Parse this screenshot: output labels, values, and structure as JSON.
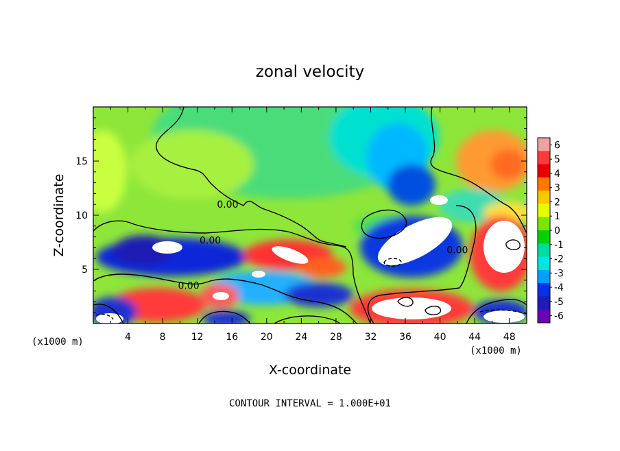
{
  "chart_data": {
    "type": "heatmap",
    "title": "zonal velocity",
    "xlabel": "X-coordinate",
    "ylabel": "Z-coordinate",
    "x_units_left": "(x1000 m)",
    "x_units_right": "(x1000 m)",
    "xlim": [
      0,
      50
    ],
    "ylim": [
      0,
      20
    ],
    "x_ticks": [
      4,
      8,
      12,
      16,
      20,
      24,
      28,
      32,
      36,
      40,
      44,
      48
    ],
    "y_ticks": [
      5,
      10,
      15
    ],
    "colorbar": {
      "ticks": [
        6,
        5,
        4,
        3,
        2,
        1,
        0,
        -1,
        -2,
        -3,
        -4,
        -5,
        -6
      ],
      "colors": [
        "#f2a0a0",
        "#ff3a3a",
        "#e60000",
        "#ff7a00",
        "#ffc800",
        "#e6ff00",
        "#78e600",
        "#00d200",
        "#00dca0",
        "#00e6e6",
        "#00a0ff",
        "#0032e6",
        "#1e1eb4",
        "#6e00b4"
      ]
    },
    "contour_labels": [
      {
        "text": "0.00",
        "x": 15.5,
        "z": 11.0
      },
      {
        "text": "0.00",
        "x": 13.5,
        "z": 7.7
      },
      {
        "text": "0.00",
        "x": 11.0,
        "z": 3.5
      },
      {
        "text": "0.00",
        "x": 42.0,
        "z": 6.8
      }
    ],
    "footer": "CONTOUR INTERVAL = 1.000E+01"
  }
}
